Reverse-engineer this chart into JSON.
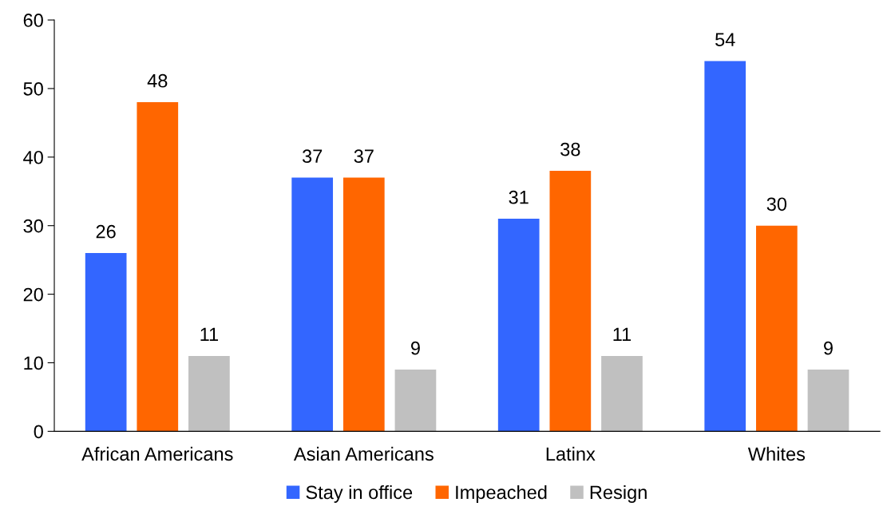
{
  "chart_data": {
    "type": "bar",
    "categories": [
      "African Americans",
      "Asian Americans",
      "Latinx",
      "Whites"
    ],
    "series": [
      {
        "name": "Stay in office",
        "color": "#3366ff",
        "values": [
          26,
          37,
          31,
          54
        ]
      },
      {
        "name": "Impeached",
        "color": "#ff6600",
        "values": [
          48,
          37,
          38,
          30
        ]
      },
      {
        "name": "Resign",
        "color": "#c0c0c0",
        "values": [
          11,
          9,
          11,
          9
        ]
      }
    ],
    "ylim": [
      0,
      60
    ],
    "yticks": [
      0,
      10,
      20,
      30,
      40,
      50,
      60
    ],
    "grid": false,
    "legend": "bottom",
    "data_labels": true
  }
}
